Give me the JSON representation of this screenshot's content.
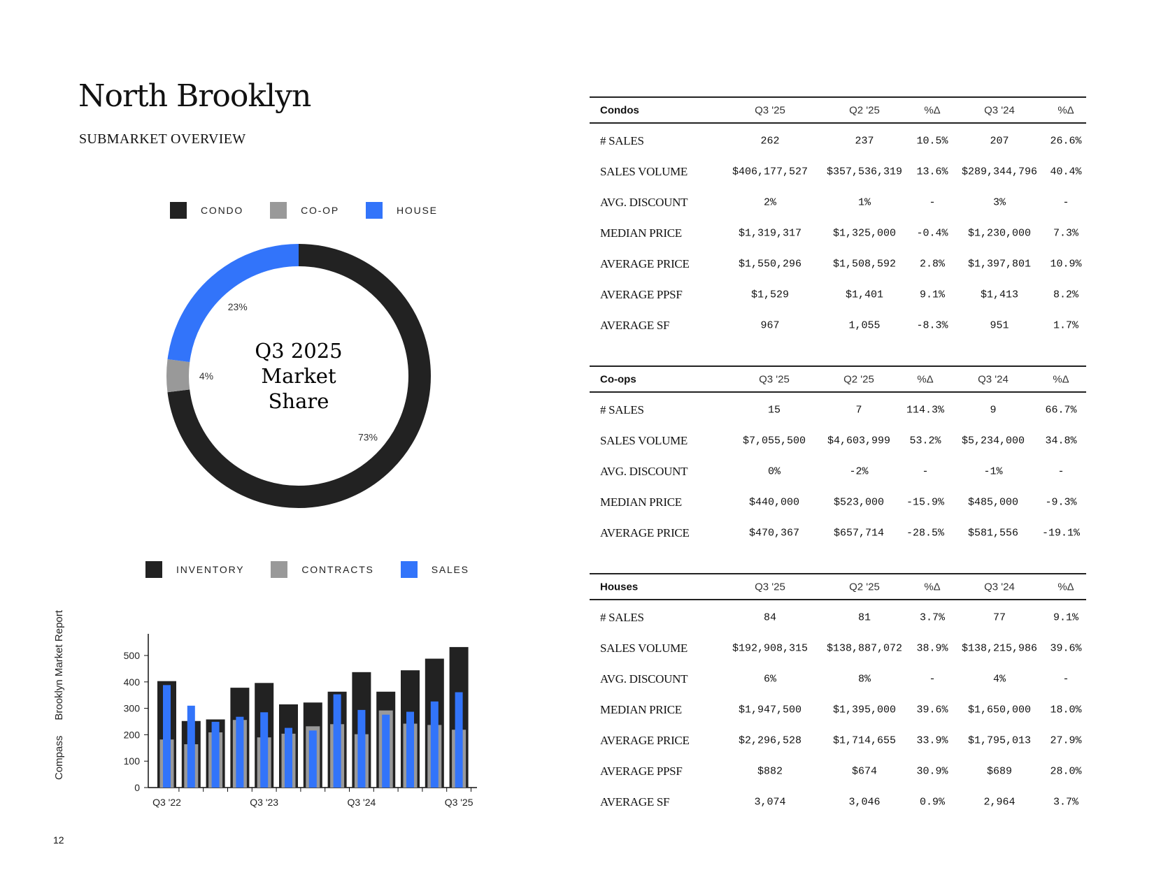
{
  "header": {
    "title": "North Brooklyn",
    "subtitle": "SUBMARKET OVERVIEW"
  },
  "sidebar": {
    "brand": "Compass",
    "report": "Brooklyn Market Report",
    "page_number": "12"
  },
  "colors": {
    "condo": "#222222",
    "coop": "#999999",
    "house": "#3274fa"
  },
  "donut": {
    "center_lines": [
      "Q3 2025",
      "Market",
      "Share"
    ],
    "legend": [
      {
        "label": "CONDO",
        "color": "#222222"
      },
      {
        "label": "CO-OP",
        "color": "#999999"
      },
      {
        "label": "HOUSE",
        "color": "#3274fa"
      }
    ]
  },
  "bar_legend": [
    {
      "label": "INVENTORY",
      "color": "#222222"
    },
    {
      "label": "CONTRACTS",
      "color": "#999999"
    },
    {
      "label": "SALES",
      "color": "#3274fa"
    }
  ],
  "chart_data": [
    {
      "type": "pie",
      "title": "Q3 2025 Market Share",
      "categories": [
        "CONDO",
        "CO-OP",
        "HOUSE"
      ],
      "values": [
        73,
        4,
        23
      ],
      "labels": [
        "73%",
        "4%",
        "23%"
      ],
      "legend": "top"
    },
    {
      "type": "bar",
      "categories": [
        "Q3 '22",
        "Q4 '22",
        "Q1 '23",
        "Q2 '23",
        "Q3 '23",
        "Q4 '23",
        "Q1 '24",
        "Q2 '24",
        "Q3 '24",
        "Q4 '24",
        "Q1 '25",
        "Q2 '25",
        "Q3 '25"
      ],
      "xtick_labels": [
        "Q3 '22",
        "Q3 '23",
        "Q3 '24",
        "Q3 '25"
      ],
      "yticks": [
        0,
        100,
        200,
        300,
        400,
        500
      ],
      "ylim": [
        0,
        580
      ],
      "legend": "top",
      "series": [
        {
          "name": "INVENTORY",
          "values": [
            403,
            252,
            258,
            378,
            396,
            315,
            322,
            363,
            437,
            363,
            444,
            488,
            532
          ]
        },
        {
          "name": "CONTRACTS",
          "values": [
            182,
            164,
            209,
            256,
            190,
            204,
            232,
            240,
            202,
            292,
            242,
            237,
            219
          ]
        },
        {
          "name": "SALES",
          "values": [
            388,
            310,
            249,
            268,
            285,
            226,
            216,
            353,
            294,
            276,
            287,
            326,
            361
          ]
        }
      ]
    }
  ],
  "tables": [
    {
      "name": "condos",
      "columns": [
        "Condos",
        "Q3 '25",
        "Q2 '25",
        "%Δ",
        "Q3 '24",
        "%Δ"
      ],
      "rows": [
        [
          "# SALES",
          "262",
          "237",
          "10.5%",
          "207",
          "26.6%"
        ],
        [
          "SALES VOLUME",
          "$406,177,527",
          "$357,536,319",
          "13.6%",
          "$289,344,796",
          "40.4%"
        ],
        [
          "AVG. DISCOUNT",
          "2%",
          "1%",
          "-",
          "3%",
          "-"
        ],
        [
          "MEDIAN PRICE",
          "$1,319,317",
          "$1,325,000",
          "-0.4%",
          "$1,230,000",
          "7.3%"
        ],
        [
          "AVERAGE PRICE",
          "$1,550,296",
          "$1,508,592",
          "2.8%",
          "$1,397,801",
          "10.9%"
        ],
        [
          "AVERAGE PPSF",
          "$1,529",
          "$1,401",
          "9.1%",
          "$1,413",
          "8.2%"
        ],
        [
          "AVERAGE SF",
          "967",
          "1,055",
          "-8.3%",
          "951",
          "1.7%"
        ]
      ]
    },
    {
      "name": "coops",
      "columns": [
        "Co-ops",
        "Q3 '25",
        "Q2 '25",
        "%Δ",
        "Q3 '24",
        "%Δ"
      ],
      "rows": [
        [
          "# SALES",
          "15",
          "7",
          "114.3%",
          "9",
          "66.7%"
        ],
        [
          "SALES VOLUME",
          "$7,055,500",
          "$4,603,999",
          "53.2%",
          "$5,234,000",
          "34.8%"
        ],
        [
          "AVG. DISCOUNT",
          "0%",
          "-2%",
          "-",
          "-1%",
          "-"
        ],
        [
          "MEDIAN PRICE",
          "$440,000",
          "$523,000",
          "-15.9%",
          "$485,000",
          "-9.3%"
        ],
        [
          "AVERAGE PRICE",
          "$470,367",
          "$657,714",
          "-28.5%",
          "$581,556",
          "-19.1%"
        ]
      ]
    },
    {
      "name": "houses",
      "columns": [
        "Houses",
        "Q3 '25",
        "Q2 '25",
        "%Δ",
        "Q3 '24",
        "%Δ"
      ],
      "rows": [
        [
          "# SALES",
          "84",
          "81",
          "3.7%",
          "77",
          "9.1%"
        ],
        [
          "SALES VOLUME",
          "$192,908,315",
          "$138,887,072",
          "38.9%",
          "$138,215,986",
          "39.6%"
        ],
        [
          "AVG. DISCOUNT",
          "6%",
          "8%",
          "-",
          "4%",
          "-"
        ],
        [
          "MEDIAN PRICE",
          "$1,947,500",
          "$1,395,000",
          "39.6%",
          "$1,650,000",
          "18.0%"
        ],
        [
          "AVERAGE PRICE",
          "$2,296,528",
          "$1,714,655",
          "33.9%",
          "$1,795,013",
          "27.9%"
        ],
        [
          "AVERAGE PPSF",
          "$882",
          "$674",
          "30.9%",
          "$689",
          "28.0%"
        ],
        [
          "AVERAGE SF",
          "3,074",
          "3,046",
          "0.9%",
          "2,964",
          "3.7%"
        ]
      ]
    }
  ]
}
